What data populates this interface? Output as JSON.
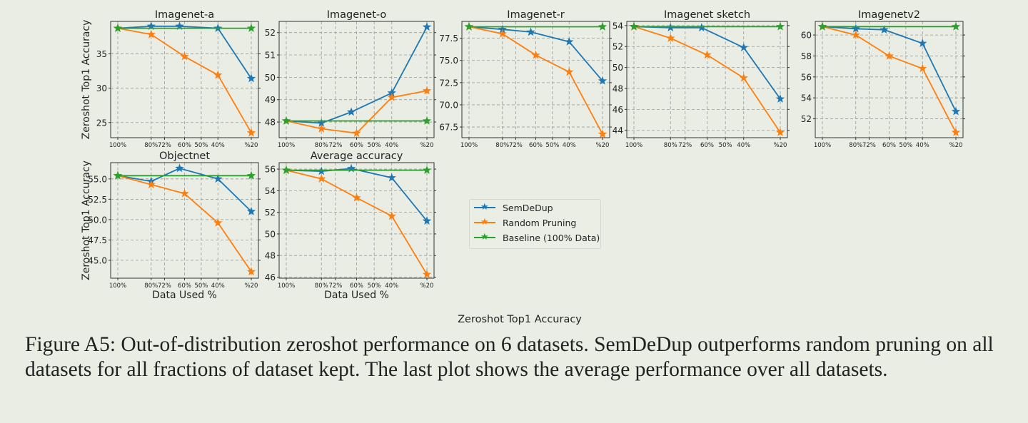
{
  "chart_data": [
    {
      "type": "line",
      "title": "Imagenet-a",
      "ylabel": "Zeroshot Top1 Accuracy",
      "xlabel": "",
      "ylim": [
        22.8,
        39.7
      ],
      "yticks": [
        25,
        30,
        35
      ],
      "series": [
        {
          "name": "SemDeDup",
          "x": [
            100,
            80,
            63,
            40,
            20
          ],
          "y": [
            38.7,
            39.0,
            39.0,
            38.7,
            31.4
          ]
        },
        {
          "name": "Random Pruning",
          "x": [
            100,
            80,
            60,
            40,
            20
          ],
          "y": [
            38.7,
            37.8,
            34.6,
            31.9,
            23.5
          ]
        },
        {
          "name": "Baseline (100% Data)",
          "x": [
            100,
            20
          ],
          "y": [
            38.7,
            38.7
          ]
        }
      ]
    },
    {
      "type": "line",
      "title": "Imagenet-o",
      "ylabel": "",
      "xlabel": "",
      "ylim": [
        47.3,
        52.5
      ],
      "yticks": [
        48,
        49,
        50,
        51,
        52
      ],
      "series": [
        {
          "name": "SemDeDup",
          "x": [
            100,
            80,
            63,
            40,
            20
          ],
          "y": [
            48.05,
            47.95,
            48.45,
            49.3,
            52.25
          ]
        },
        {
          "name": "Random Pruning",
          "x": [
            100,
            80,
            60,
            40,
            20
          ],
          "y": [
            48.05,
            47.7,
            47.5,
            49.1,
            49.4
          ]
        },
        {
          "name": "Baseline (100% Data)",
          "x": [
            100,
            20
          ],
          "y": [
            48.05,
            48.05
          ]
        }
      ]
    },
    {
      "type": "line",
      "title": "Imagenet-r",
      "ylabel": "",
      "xlabel": "",
      "ylim": [
        66.3,
        79.4
      ],
      "yticks": [
        67.5,
        70.0,
        72.5,
        75.0,
        77.5
      ],
      "series": [
        {
          "name": "SemDeDup",
          "x": [
            100,
            80,
            63,
            40,
            20
          ],
          "y": [
            78.8,
            78.5,
            78.2,
            77.1,
            72.7
          ]
        },
        {
          "name": "Random Pruning",
          "x": [
            100,
            80,
            60,
            40,
            20
          ],
          "y": [
            78.8,
            78.0,
            75.6,
            73.7,
            66.7
          ]
        },
        {
          "name": "Baseline (100% Data)",
          "x": [
            100,
            20
          ],
          "y": [
            78.8,
            78.8
          ]
        }
      ]
    },
    {
      "type": "line",
      "title": "Imagenet sketch",
      "ylabel": "",
      "xlabel": "",
      "ylim": [
        43.3,
        54.4
      ],
      "yticks": [
        44,
        46,
        48,
        50,
        52,
        54
      ],
      "series": [
        {
          "name": "SemDeDup",
          "x": [
            100,
            80,
            63,
            40,
            20
          ],
          "y": [
            53.9,
            53.8,
            53.8,
            51.9,
            47.0
          ]
        },
        {
          "name": "Random Pruning",
          "x": [
            100,
            80,
            60,
            40,
            20
          ],
          "y": [
            53.9,
            52.8,
            51.2,
            49.0,
            43.8
          ]
        },
        {
          "name": "Baseline (100% Data)",
          "x": [
            100,
            20
          ],
          "y": [
            53.9,
            53.9
          ]
        }
      ]
    },
    {
      "type": "line",
      "title": "Imagenetv2",
      "ylabel": "",
      "xlabel": "",
      "ylim": [
        50.2,
        61.3
      ],
      "yticks": [
        52,
        54,
        56,
        58,
        60
      ],
      "series": [
        {
          "name": "SemDeDup",
          "x": [
            100,
            80,
            63,
            40,
            20
          ],
          "y": [
            60.8,
            60.6,
            60.5,
            59.2,
            52.7
          ]
        },
        {
          "name": "Random Pruning",
          "x": [
            100,
            80,
            60,
            40,
            20
          ],
          "y": [
            60.8,
            60.0,
            58.0,
            56.8,
            50.7
          ]
        },
        {
          "name": "Baseline (100% Data)",
          "x": [
            100,
            20
          ],
          "y": [
            60.8,
            60.8
          ]
        }
      ]
    },
    {
      "type": "line",
      "title": "Objectnet",
      "ylabel": "Zeroshot Top1 Accuracy",
      "xlabel": "Data Used %",
      "ylim": [
        42.8,
        57.0
      ],
      "yticks": [
        45.0,
        47.5,
        50.0,
        52.5,
        55.0
      ],
      "series": [
        {
          "name": "SemDeDup",
          "x": [
            100,
            80,
            63,
            40,
            20
          ],
          "y": [
            55.4,
            54.7,
            56.3,
            55.0,
            51.0
          ]
        },
        {
          "name": "Random Pruning",
          "x": [
            100,
            80,
            60,
            40,
            20
          ],
          "y": [
            55.4,
            54.3,
            53.2,
            49.6,
            43.6
          ]
        },
        {
          "name": "Baseline (100% Data)",
          "x": [
            100,
            20
          ],
          "y": [
            55.4,
            55.4
          ]
        }
      ]
    },
    {
      "type": "line",
      "title": "Average accuracy",
      "ylabel": "",
      "xlabel": "Data Used %",
      "ylim": [
        45.9,
        56.6
      ],
      "yticks": [
        46,
        48,
        50,
        52,
        54,
        56
      ],
      "series": [
        {
          "name": "SemDeDup",
          "x": [
            100,
            80,
            63,
            40,
            20
          ],
          "y": [
            55.9,
            55.8,
            56.05,
            55.2,
            51.2
          ]
        },
        {
          "name": "Random Pruning",
          "x": [
            100,
            80,
            60,
            40,
            20
          ],
          "y": [
            55.9,
            55.1,
            53.35,
            51.65,
            46.25
          ]
        },
        {
          "name": "Baseline (100% Data)",
          "x": [
            100,
            20
          ],
          "y": [
            55.9,
            55.9
          ]
        }
      ]
    }
  ],
  "xticks": {
    "values": [
      100,
      80,
      72,
      60,
      50,
      40,
      20
    ],
    "labels": [
      "100%",
      "80%",
      "72%",
      "60%",
      "50%",
      "40%",
      "%20"
    ]
  },
  "colors": {
    "SemDeDup": "#1f77b4",
    "Random Pruning": "#ff7f0e",
    "Baseline (100% Data)": "#2ca02c"
  },
  "marker": "star",
  "grid": true,
  "legend": {
    "placement": "right",
    "items": [
      "SemDeDup",
      "Random Pruning",
      "Baseline (100% Data)"
    ]
  },
  "center_label": "Zeroshot Top1 Accuracy",
  "caption": "Figure A5: Out-of-distribution zeroshot performance on 6 datasets. SemDeDup outperforms random pruning on all datasets for all fractions of dataset kept. The last plot shows the average performance over all datasets."
}
